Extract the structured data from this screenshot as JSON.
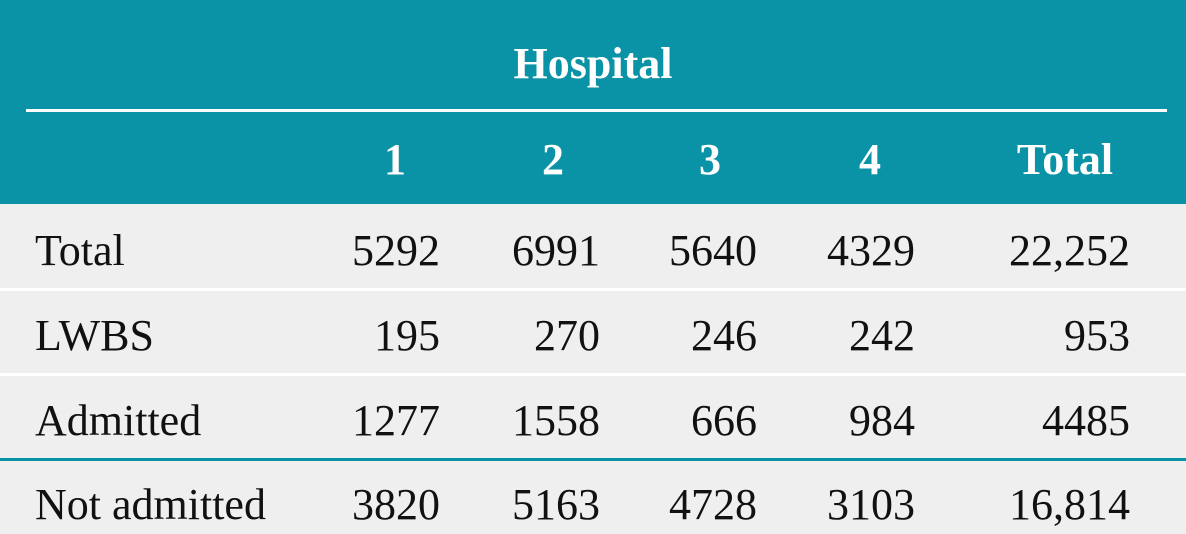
{
  "table": {
    "group_header": "Hospital",
    "columns": [
      "1",
      "2",
      "3",
      "4",
      "Total"
    ],
    "rows": [
      {
        "label": "Total",
        "values": [
          "5292",
          "6991",
          "5640",
          "4329",
          "22,252"
        ]
      },
      {
        "label": "LWBS",
        "values": [
          "195",
          "270",
          "246",
          "242",
          "953"
        ]
      },
      {
        "label": "Admitted",
        "values": [
          "1277",
          "1558",
          "666",
          "984",
          "4485"
        ]
      },
      {
        "label": "Not admitted",
        "values": [
          "3820",
          "5163",
          "4728",
          "3103",
          "16,814"
        ]
      }
    ]
  },
  "colors": {
    "header_bg": "#0a93a6",
    "body_bg": "#efefef",
    "header_text": "#ffffff",
    "body_text": "#111111"
  }
}
